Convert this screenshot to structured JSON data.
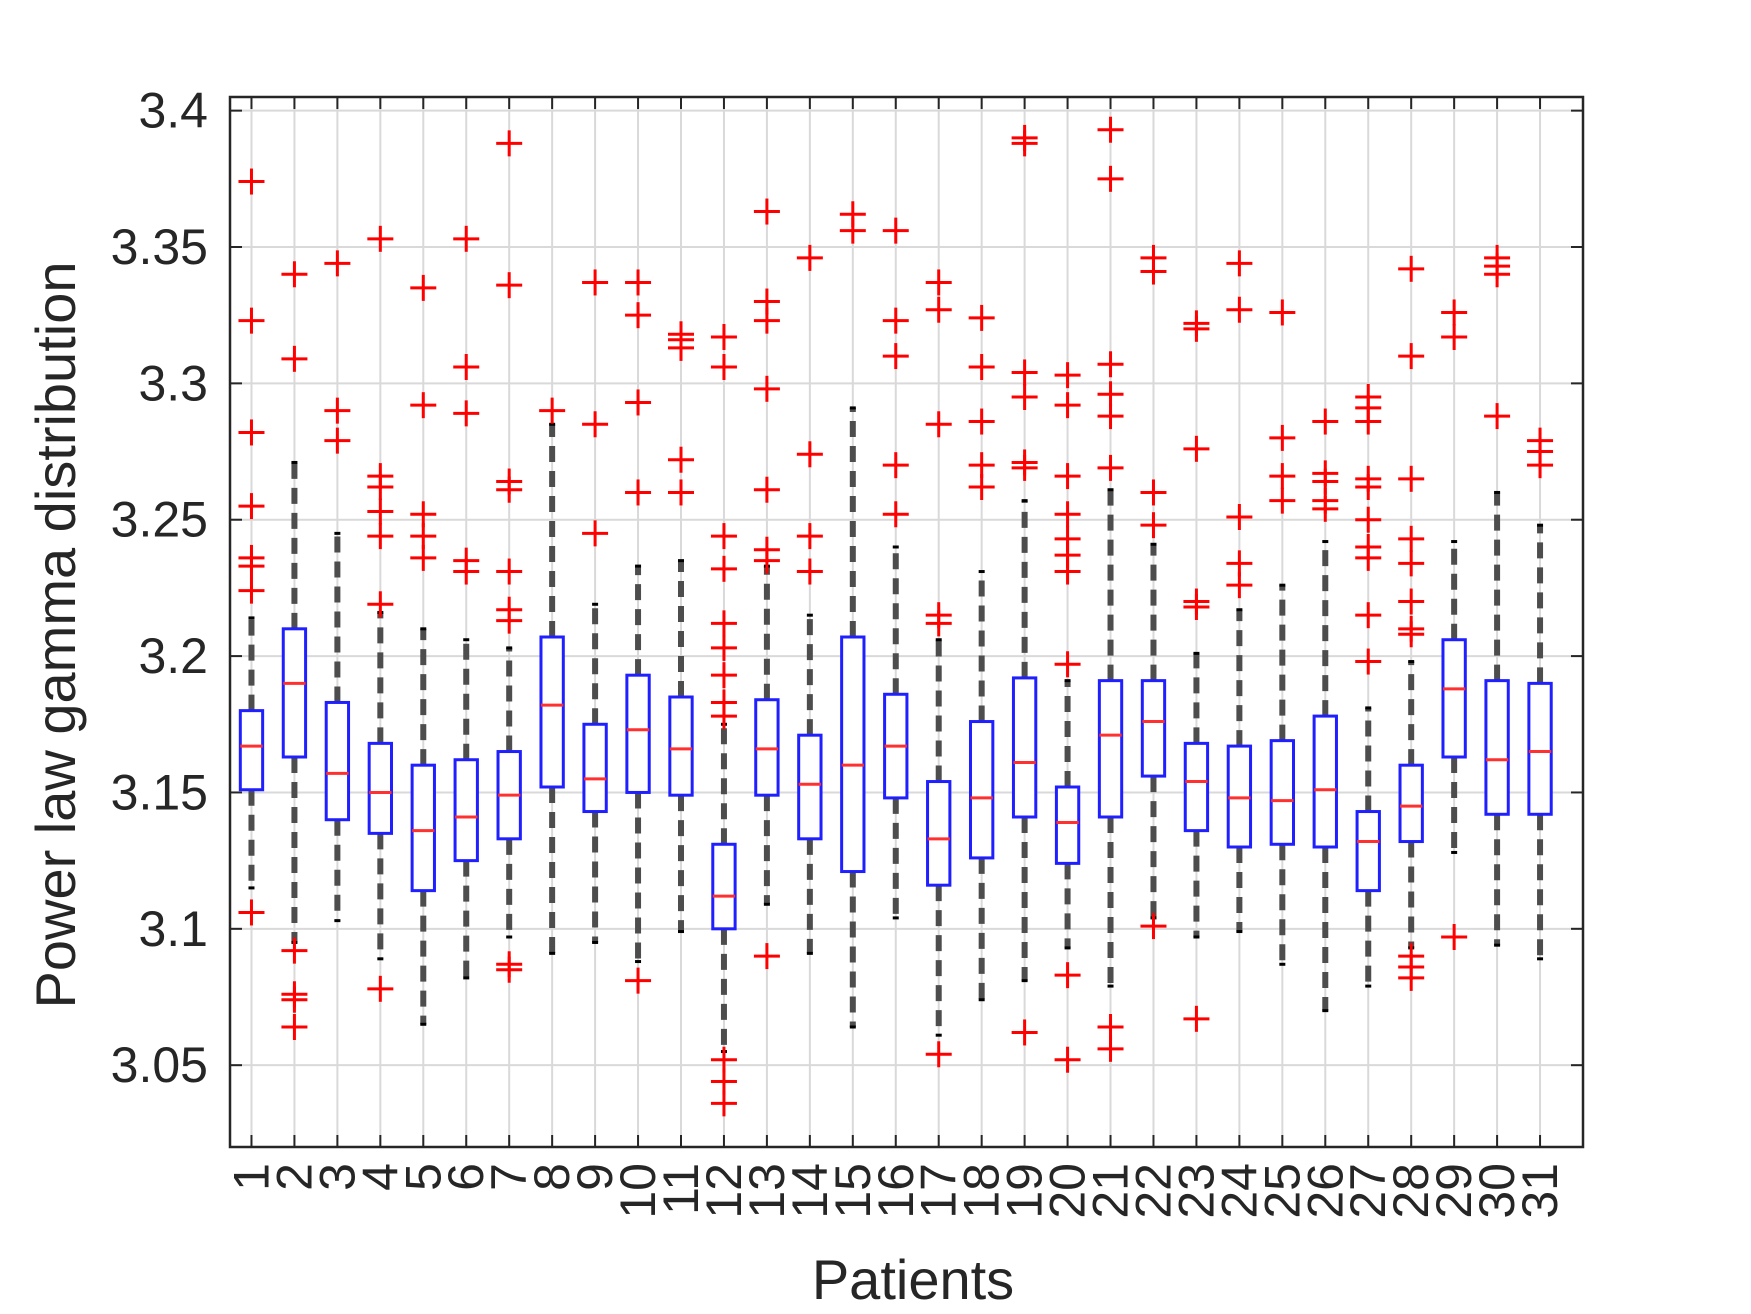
{
  "chart_data": {
    "type": "box",
    "title": "",
    "xlabel": "Patients",
    "ylabel": "Power law gamma distribution",
    "ylim": [
      3.02,
      3.405
    ],
    "yticks": [
      3.05,
      3.1,
      3.15,
      3.2,
      3.25,
      3.3,
      3.35,
      3.4
    ],
    "ytick_labels": [
      "3.05",
      "3.1",
      "3.15",
      "3.2",
      "3.25",
      "3.3",
      "3.35",
      "3.4"
    ],
    "grid": true,
    "colors": {
      "box": "#1f1fff",
      "median": "#ff3030",
      "whisker": "#4d4d4d",
      "outlier": "#ff0000",
      "grid": "#d9d9d9",
      "axis": "#262626"
    },
    "boxes": [
      {
        "label": "1",
        "q1": 3.151,
        "median": 3.167,
        "q3": 3.18,
        "whislo": 3.115,
        "whishi": 3.214,
        "fliers": [
          3.374,
          3.323,
          3.282,
          3.255,
          3.236,
          3.233,
          3.224,
          3.106
        ]
      },
      {
        "label": "2",
        "q1": 3.163,
        "median": 3.19,
        "q3": 3.21,
        "whislo": 3.095,
        "whishi": 3.271,
        "fliers": [
          3.34,
          3.309,
          3.092,
          3.076,
          3.074,
          3.064
        ]
      },
      {
        "label": "3",
        "q1": 3.14,
        "median": 3.157,
        "q3": 3.183,
        "whislo": 3.103,
        "whishi": 3.245,
        "fliers": [
          3.344,
          3.29,
          3.279
        ]
      },
      {
        "label": "4",
        "q1": 3.135,
        "median": 3.15,
        "q3": 3.168,
        "whislo": 3.089,
        "whishi": 3.216,
        "fliers": [
          3.353,
          3.266,
          3.262,
          3.253,
          3.244,
          3.219,
          3.078
        ]
      },
      {
        "label": "5",
        "q1": 3.114,
        "median": 3.136,
        "q3": 3.16,
        "whislo": 3.065,
        "whishi": 3.21,
        "fliers": [
          3.335,
          3.292,
          3.252,
          3.244,
          3.236
        ]
      },
      {
        "label": "6",
        "q1": 3.125,
        "median": 3.141,
        "q3": 3.162,
        "whislo": 3.082,
        "whishi": 3.206,
        "fliers": [
          3.353,
          3.306,
          3.289,
          3.235,
          3.231
        ]
      },
      {
        "label": "7",
        "q1": 3.133,
        "median": 3.149,
        "q3": 3.165,
        "whislo": 3.097,
        "whishi": 3.203,
        "fliers": [
          3.388,
          3.336,
          3.264,
          3.261,
          3.231,
          3.217,
          3.213,
          3.087,
          3.085
        ]
      },
      {
        "label": "8",
        "q1": 3.152,
        "median": 3.182,
        "q3": 3.207,
        "whislo": 3.091,
        "whishi": 3.285,
        "fliers": [
          3.29
        ]
      },
      {
        "label": "9",
        "q1": 3.143,
        "median": 3.155,
        "q3": 3.175,
        "whislo": 3.095,
        "whishi": 3.219,
        "fliers": [
          3.337,
          3.285,
          3.245
        ]
      },
      {
        "label": "10",
        "q1": 3.15,
        "median": 3.173,
        "q3": 3.193,
        "whislo": 3.088,
        "whishi": 3.233,
        "fliers": [
          3.337,
          3.325,
          3.293,
          3.26,
          3.081
        ]
      },
      {
        "label": "11",
        "q1": 3.149,
        "median": 3.166,
        "q3": 3.185,
        "whislo": 3.099,
        "whishi": 3.235,
        "fliers": [
          3.318,
          3.316,
          3.313,
          3.272,
          3.26
        ]
      },
      {
        "label": "12",
        "q1": 3.1,
        "median": 3.112,
        "q3": 3.131,
        "whislo": 3.055,
        "whishi": 3.175,
        "fliers": [
          3.317,
          3.306,
          3.244,
          3.232,
          3.212,
          3.203,
          3.193,
          3.183,
          3.178,
          3.052,
          3.044,
          3.036
        ]
      },
      {
        "label": "13",
        "q1": 3.149,
        "median": 3.166,
        "q3": 3.184,
        "whislo": 3.109,
        "whishi": 3.233,
        "fliers": [
          3.363,
          3.33,
          3.323,
          3.298,
          3.261,
          3.239,
          3.235,
          3.09
        ]
      },
      {
        "label": "14",
        "q1": 3.133,
        "median": 3.153,
        "q3": 3.171,
        "whislo": 3.091,
        "whishi": 3.215,
        "fliers": [
          3.346,
          3.274,
          3.244,
          3.231
        ]
      },
      {
        "label": "15",
        "q1": 3.121,
        "median": 3.16,
        "q3": 3.207,
        "whislo": 3.064,
        "whishi": 3.291,
        "fliers": [
          3.362,
          3.356
        ]
      },
      {
        "label": "16",
        "q1": 3.148,
        "median": 3.167,
        "q3": 3.186,
        "whislo": 3.104,
        "whishi": 3.24,
        "fliers": [
          3.356,
          3.323,
          3.31,
          3.27,
          3.252
        ]
      },
      {
        "label": "17",
        "q1": 3.116,
        "median": 3.133,
        "q3": 3.154,
        "whislo": 3.061,
        "whishi": 3.206,
        "fliers": [
          3.337,
          3.327,
          3.285,
          3.215,
          3.212,
          3.054
        ]
      },
      {
        "label": "18",
        "q1": 3.126,
        "median": 3.148,
        "q3": 3.176,
        "whislo": 3.074,
        "whishi": 3.231,
        "fliers": [
          3.324,
          3.306,
          3.286,
          3.27,
          3.262
        ]
      },
      {
        "label": "19",
        "q1": 3.141,
        "median": 3.161,
        "q3": 3.192,
        "whislo": 3.081,
        "whishi": 3.257,
        "fliers": [
          3.39,
          3.388,
          3.304,
          3.295,
          3.271,
          3.269,
          3.062
        ]
      },
      {
        "label": "20",
        "q1": 3.124,
        "median": 3.139,
        "q3": 3.152,
        "whislo": 3.093,
        "whishi": 3.191,
        "fliers": [
          3.303,
          3.292,
          3.266,
          3.252,
          3.243,
          3.237,
          3.231,
          3.197,
          3.083,
          3.052
        ]
      },
      {
        "label": "21",
        "q1": 3.141,
        "median": 3.171,
        "q3": 3.191,
        "whislo": 3.079,
        "whishi": 3.261,
        "fliers": [
          3.393,
          3.375,
          3.307,
          3.296,
          3.288,
          3.269,
          3.064,
          3.056
        ]
      },
      {
        "label": "22",
        "q1": 3.156,
        "median": 3.176,
        "q3": 3.191,
        "whislo": 3.104,
        "whishi": 3.241,
        "fliers": [
          3.346,
          3.341,
          3.26,
          3.248,
          3.101
        ]
      },
      {
        "label": "23",
        "q1": 3.136,
        "median": 3.154,
        "q3": 3.168,
        "whislo": 3.097,
        "whishi": 3.201,
        "fliers": [
          3.322,
          3.32,
          3.276,
          3.22,
          3.218,
          3.067
        ]
      },
      {
        "label": "24",
        "q1": 3.13,
        "median": 3.148,
        "q3": 3.167,
        "whislo": 3.099,
        "whishi": 3.217,
        "fliers": [
          3.344,
          3.327,
          3.251,
          3.234,
          3.226
        ]
      },
      {
        "label": "25",
        "q1": 3.131,
        "median": 3.147,
        "q3": 3.169,
        "whislo": 3.087,
        "whishi": 3.226,
        "fliers": [
          3.326,
          3.28,
          3.266,
          3.257
        ]
      },
      {
        "label": "26",
        "q1": 3.13,
        "median": 3.151,
        "q3": 3.178,
        "whislo": 3.07,
        "whishi": 3.242,
        "fliers": [
          3.286,
          3.267,
          3.264,
          3.257,
          3.254
        ]
      },
      {
        "label": "27",
        "q1": 3.114,
        "median": 3.132,
        "q3": 3.143,
        "whislo": 3.079,
        "whishi": 3.181,
        "fliers": [
          3.295,
          3.291,
          3.286,
          3.265,
          3.262,
          3.25,
          3.24,
          3.236,
          3.215,
          3.198
        ]
      },
      {
        "label": "28",
        "q1": 3.132,
        "median": 3.145,
        "q3": 3.16,
        "whislo": 3.093,
        "whishi": 3.198,
        "fliers": [
          3.342,
          3.31,
          3.265,
          3.243,
          3.234,
          3.22,
          3.21,
          3.208,
          3.09,
          3.086,
          3.082
        ]
      },
      {
        "label": "29",
        "q1": 3.163,
        "median": 3.188,
        "q3": 3.206,
        "whislo": 3.128,
        "whishi": 3.242,
        "fliers": [
          3.326,
          3.317,
          3.097
        ]
      },
      {
        "label": "30",
        "q1": 3.142,
        "median": 3.162,
        "q3": 3.191,
        "whislo": 3.094,
        "whishi": 3.26,
        "fliers": [
          3.346,
          3.343,
          3.34,
          3.288
        ]
      },
      {
        "label": "31",
        "q1": 3.142,
        "median": 3.165,
        "q3": 3.19,
        "whislo": 3.089,
        "whishi": 3.248,
        "fliers": [
          3.279,
          3.275,
          3.27
        ]
      }
    ]
  }
}
